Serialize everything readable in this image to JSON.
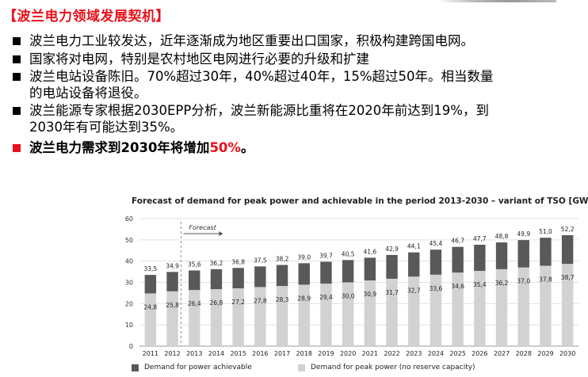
{
  "title": "【波兰电力领域发展契机】",
  "bullets": [
    "波兰电力工业较发达，近年逐渐成为地区重要出口国家，积极构建跨国电网。",
    "国家将对电网，特别是农村地区电网进行必要的升级和扩建",
    "波兰电站设备陈旧。70%超过30年，40%超过40年，15%超过50年。相当数量\n的电站设备将退役。",
    "波兰能源专家根据2030EPP分析，波兰新能源比重将在2020年前达到19%，到\n2030年有可能达到35%。"
  ],
  "highlight": {
    "text": "波兰电力需求到2030年将增加",
    "percent": "50%",
    "end": "。",
    "color": "#e8111b"
  },
  "chart_data": {
    "type": "bar",
    "title": "Forecast of demand for peak power and achievable in the period 2013-2030 – variant of TSO [GW]",
    "annotation": "Forecast",
    "categories": [
      "2011",
      "2012",
      "2013",
      "2014",
      "2015",
      "2016",
      "2017",
      "2018",
      "2019",
      "2020",
      "2021",
      "2022",
      "2023",
      "2024",
      "2025",
      "2026",
      "2027",
      "2028",
      "2029",
      "2030"
    ],
    "series": [
      {
        "name": "Demand for peak power (no reserve capacity)",
        "color": "#d2d2d2",
        "values": [
          24.8,
          25.8,
          26.4,
          26.8,
          27.2,
          27.8,
          28.3,
          28.9,
          29.4,
          30.0,
          30.9,
          31.7,
          32.7,
          33.6,
          34.6,
          35.4,
          36.2,
          37.0,
          37.8,
          38.7
        ],
        "labels": [
          "24,8",
          "25,8",
          "26,4",
          "26,8",
          "27,2",
          "27,8",
          "28,3",
          "28,9",
          "29,4",
          "30,0",
          "30,9",
          "31,7",
          "32,7",
          "33,6",
          "34,6",
          "35,4",
          "36,2",
          "37,0",
          "37,8",
          "38,7"
        ]
      },
      {
        "name": "Demand for power achievable",
        "color": "#595959",
        "values": [
          33.5,
          34.9,
          35.6,
          36.2,
          36.8,
          37.5,
          38.2,
          39.0,
          39.7,
          40.5,
          41.6,
          42.9,
          44.1,
          45.4,
          46.7,
          47.7,
          48.8,
          49.9,
          51.0,
          52.2
        ],
        "labels": [
          "33,5",
          "34,9",
          "35,6",
          "36,2",
          "36,8",
          "37,5",
          "38,2",
          "39,0",
          "39,7",
          "40,5",
          "41,6",
          "42,9",
          "44,1",
          "45,4",
          "46,7",
          "47,7",
          "48,8",
          "49,9",
          "51,0",
          "52,2"
        ]
      }
    ],
    "yticks": [
      "0",
      "10",
      "20",
      "30",
      "40",
      "50",
      "60"
    ],
    "ylim": [
      0,
      60
    ],
    "grid": true,
    "legend_position": "bottom"
  }
}
